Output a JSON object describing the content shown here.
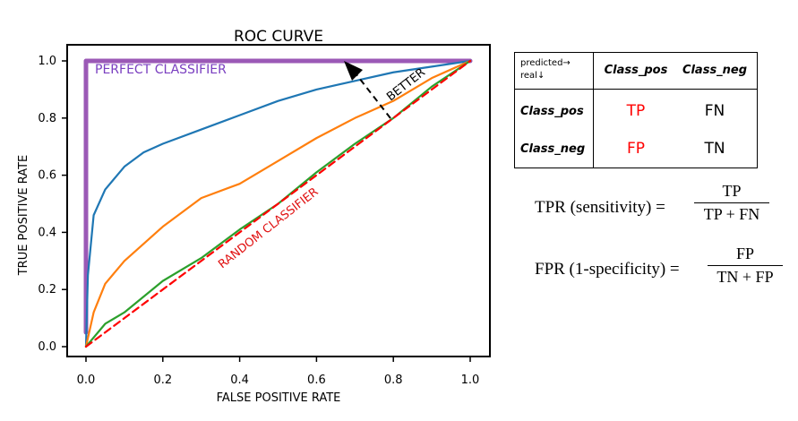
{
  "chart_data": {
    "type": "line",
    "title": "ROC CURVE",
    "xlabel": "FALSE POSITIVE RATE",
    "ylabel": "TRUE POSITIVE RATE",
    "xlim": [
      0,
      1
    ],
    "ylim": [
      0,
      1
    ],
    "xticks": [
      "0.0",
      "0.2",
      "0.4",
      "0.6",
      "0.8",
      "1.0"
    ],
    "yticks": [
      "0.0",
      "0.2",
      "0.4",
      "0.6",
      "0.8",
      "1.0"
    ],
    "series": [
      {
        "name": "perfect classifier",
        "color": "#9b59b6",
        "x": [
          0,
          0,
          1
        ],
        "y": [
          0.05,
          1,
          1
        ]
      },
      {
        "name": "blue classifier",
        "color": "#1f77b4",
        "x": [
          0,
          0.005,
          0.02,
          0.05,
          0.1,
          0.15,
          0.2,
          0.3,
          0.4,
          0.5,
          0.6,
          0.7,
          0.8,
          0.9,
          1.0
        ],
        "y": [
          0,
          0.25,
          0.46,
          0.55,
          0.63,
          0.68,
          0.71,
          0.76,
          0.81,
          0.86,
          0.9,
          0.93,
          0.96,
          0.98,
          1.0
        ]
      },
      {
        "name": "orange classifier",
        "color": "#ff7f0e",
        "x": [
          0,
          0.02,
          0.05,
          0.1,
          0.15,
          0.2,
          0.3,
          0.4,
          0.5,
          0.6,
          0.7,
          0.8,
          0.9,
          1.0
        ],
        "y": [
          0,
          0.12,
          0.22,
          0.3,
          0.36,
          0.42,
          0.52,
          0.57,
          0.65,
          0.73,
          0.8,
          0.86,
          0.94,
          1.0
        ]
      },
      {
        "name": "green classifier",
        "color": "#2ca02c",
        "x": [
          0,
          0.05,
          0.1,
          0.2,
          0.3,
          0.4,
          0.5,
          0.6,
          0.7,
          0.8,
          0.9,
          1.0
        ],
        "y": [
          0,
          0.08,
          0.12,
          0.23,
          0.31,
          0.41,
          0.5,
          0.61,
          0.71,
          0.8,
          0.91,
          1.0
        ]
      },
      {
        "name": "random classifier",
        "color": "#ff0000",
        "dashed": true,
        "x": [
          0,
          1
        ],
        "y": [
          0,
          1
        ]
      }
    ],
    "annotations": {
      "perfect": "PERFECT CLASSIFIER",
      "random": "RANDOM CLASSIFIER",
      "better": "BETTER"
    }
  },
  "confusion_matrix": {
    "corner_top": "predicted→",
    "corner_bottom": "real↓",
    "col_headers": [
      "Class_pos",
      "Class_neg"
    ],
    "row_headers": [
      "Class_pos",
      "Class_neg"
    ],
    "cells": [
      [
        "TP",
        "FN"
      ],
      [
        "FP",
        "TN"
      ]
    ],
    "cell_colors": [
      [
        "#ff0000",
        "#000000"
      ],
      [
        "#ff0000",
        "#000000"
      ]
    ]
  },
  "formulas": {
    "tpr_label": "TPR (sensitivity) =",
    "tpr_num": "TP",
    "tpr_den": "TP + FN",
    "fpr_label": "FPR (1-specificity) =",
    "fpr_num": "FP",
    "fpr_den": "TN + FP"
  }
}
